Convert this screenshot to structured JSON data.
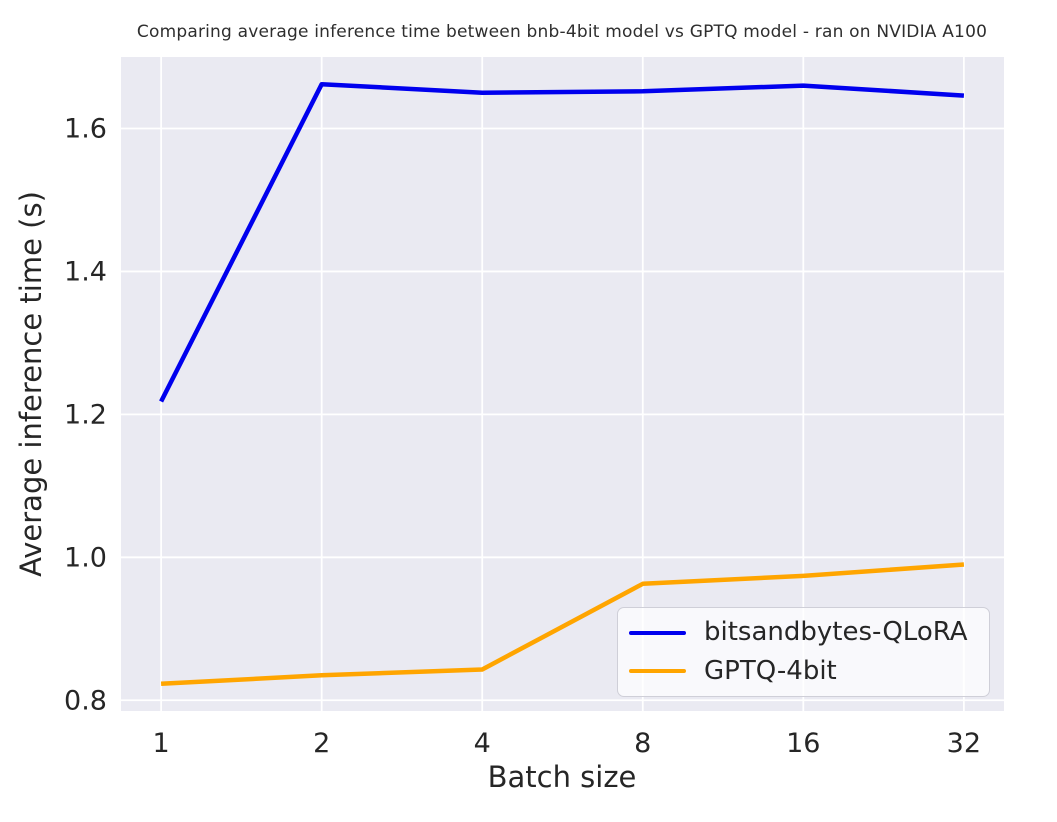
{
  "chart_data": {
    "type": "line",
    "title": "Comparing  average inference time between bnb-4bit model vs GPTQ model - ran on NVIDIA A100",
    "xlabel": "Batch size",
    "ylabel": "Average inference time (s)",
    "x_scale": "log2",
    "x": [
      1,
      2,
      4,
      8,
      16,
      32
    ],
    "yticks": [
      0.8,
      1.0,
      1.2,
      1.4,
      1.6
    ],
    "ylim": [
      0.785,
      1.7
    ],
    "grid": true,
    "legend_position": "lower right",
    "series": [
      {
        "name": "bitsandbytes-QLoRA",
        "color": "#0000ee",
        "values": [
          1.218,
          1.662,
          1.65,
          1.652,
          1.66,
          1.646
        ]
      },
      {
        "name": "GPTQ-4bit",
        "color": "#ffa500",
        "values": [
          0.823,
          0.835,
          0.843,
          0.963,
          0.974,
          0.99
        ]
      }
    ],
    "colors": {
      "plot_bg": "#eaeaf2",
      "grid": "#ffffff",
      "tick_text": "#262626",
      "title_text": "#2e2e2e"
    }
  }
}
